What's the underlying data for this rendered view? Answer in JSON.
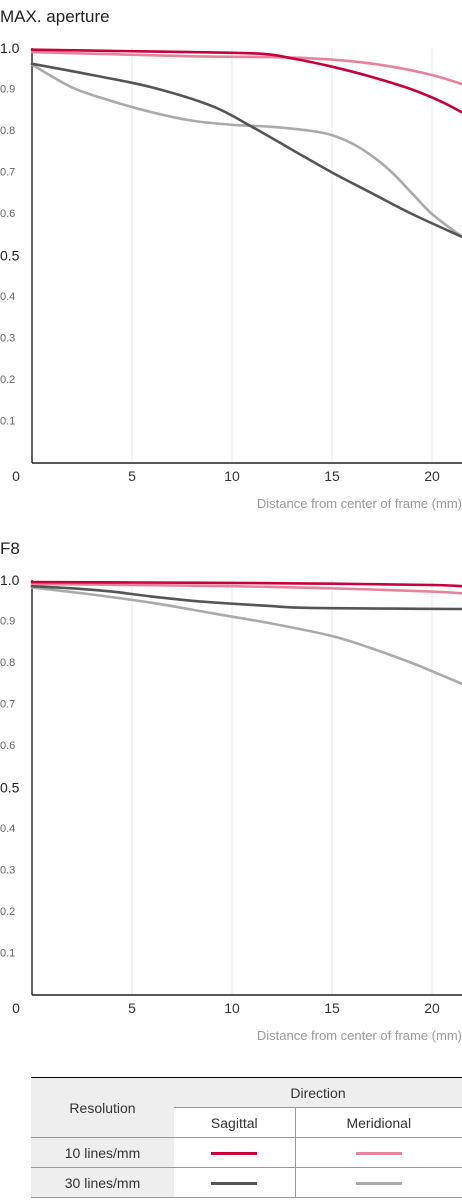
{
  "chart_data": [
    {
      "type": "line",
      "title": "MAX. aperture",
      "xlabel": "Distance from center of frame (mm)",
      "xlim": [
        0,
        21.5
      ],
      "ylim": [
        0,
        1.0
      ],
      "xticks": [
        "0",
        "5",
        "10",
        "15",
        "20"
      ],
      "yticks": [
        "0.1",
        "0.2",
        "0.3",
        "0.4",
        "0.5",
        "0.6",
        "0.7",
        "0.8",
        "0.9",
        "1.0"
      ],
      "grid": true,
      "series": [
        {
          "color": "#c8003c",
          "x": [
            0,
            4,
            8,
            11.5,
            13,
            15,
            17,
            19,
            20.5,
            21.5
          ],
          "y": [
            0.996,
            0.993,
            0.99,
            0.986,
            0.975,
            0.955,
            0.93,
            0.9,
            0.87,
            0.845
          ]
        },
        {
          "color": "#e8829c",
          "x": [
            0,
            4,
            8,
            12,
            14,
            16,
            18,
            20,
            21.5
          ],
          "y": [
            0.99,
            0.985,
            0.98,
            0.978,
            0.975,
            0.968,
            0.955,
            0.935,
            0.913
          ]
        },
        {
          "color": "#555555",
          "x": [
            0,
            3,
            6,
            9,
            11,
            13,
            15,
            17,
            19,
            21.5
          ],
          "y": [
            0.962,
            0.935,
            0.905,
            0.86,
            0.81,
            0.755,
            0.7,
            0.65,
            0.6,
            0.545
          ]
        },
        {
          "color": "#aaaaaa",
          "x": [
            0,
            2,
            4,
            6,
            8,
            10,
            12,
            14,
            15,
            16,
            17,
            18,
            19,
            20,
            21.5
          ],
          "y": [
            0.96,
            0.905,
            0.872,
            0.845,
            0.825,
            0.815,
            0.81,
            0.8,
            0.79,
            0.77,
            0.74,
            0.7,
            0.65,
            0.6,
            0.545
          ]
        }
      ]
    },
    {
      "type": "line",
      "title": "F8",
      "xlabel": "Distance from center of frame (mm)",
      "xlim": [
        0,
        21.5
      ],
      "ylim": [
        0,
        1.0
      ],
      "xticks": [
        "0",
        "5",
        "10",
        "15",
        "20"
      ],
      "yticks": [
        "0.1",
        "0.2",
        "0.3",
        "0.4",
        "0.5",
        "0.6",
        "0.7",
        "0.8",
        "0.9",
        "1.0"
      ],
      "grid": true,
      "series": [
        {
          "color": "#c8003c",
          "x": [
            0,
            5,
            10,
            15,
            20,
            21.5
          ],
          "y": [
            0.995,
            0.994,
            0.993,
            0.991,
            0.988,
            0.985
          ]
        },
        {
          "color": "#e8829c",
          "x": [
            0,
            5,
            10,
            15,
            20,
            21.5
          ],
          "y": [
            0.99,
            0.988,
            0.985,
            0.98,
            0.972,
            0.968
          ]
        },
        {
          "color": "#555555",
          "x": [
            0,
            2,
            4,
            6,
            8,
            10,
            12,
            13,
            15,
            18,
            21.5
          ],
          "y": [
            0.985,
            0.98,
            0.972,
            0.96,
            0.95,
            0.943,
            0.937,
            0.934,
            0.932,
            0.931,
            0.93
          ]
        },
        {
          "color": "#aaaaaa",
          "x": [
            0,
            3,
            6,
            9,
            12,
            15,
            17,
            19,
            20.5,
            21.5
          ],
          "y": [
            0.982,
            0.965,
            0.945,
            0.92,
            0.895,
            0.865,
            0.835,
            0.8,
            0.77,
            0.75
          ]
        }
      ]
    }
  ],
  "legend": {
    "resolution_header": "Resolution",
    "direction_header": "Direction",
    "sagittal": "Sagittal",
    "meridional": "Meridional",
    "rows": [
      {
        "label": "10 lines/mm",
        "sagittal_color": "#c8003c",
        "meridional_color": "#e8829c"
      },
      {
        "label": "30 lines/mm",
        "sagittal_color": "#555555",
        "meridional_color": "#aaaaaa"
      }
    ]
  }
}
